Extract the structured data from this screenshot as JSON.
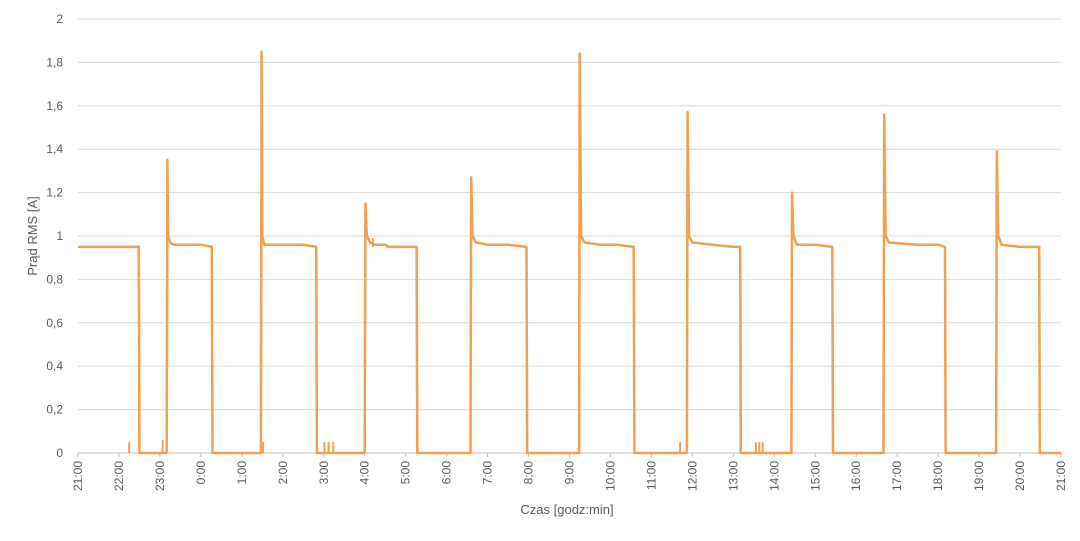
{
  "chart_data": {
    "type": "line",
    "title": "",
    "xlabel": "Czas [godz:min]",
    "ylabel": "Prąd RMS [A]",
    "ylim": [
      0,
      2
    ],
    "yticks": [
      {
        "value": 0,
        "label": "0"
      },
      {
        "value": 0.2,
        "label": "0,2"
      },
      {
        "value": 0.4,
        "label": "0,4"
      },
      {
        "value": 0.6,
        "label": "0,6"
      },
      {
        "value": 0.8,
        "label": "0,8"
      },
      {
        "value": 1.0,
        "label": "1"
      },
      {
        "value": 1.2,
        "label": "1,2"
      },
      {
        "value": 1.4,
        "label": "1,4"
      },
      {
        "value": 1.6,
        "label": "1,6"
      },
      {
        "value": 1.8,
        "label": "1,8"
      },
      {
        "value": 2.0,
        "label": "2"
      }
    ],
    "xticks": [
      "21:00",
      "22:00",
      "23:00",
      "0:00",
      "1:00",
      "2:00",
      "3:00",
      "4:00",
      "5:00",
      "6:00",
      "7:00",
      "8:00",
      "9:00",
      "10:00",
      "11:00",
      "12:00",
      "13:00",
      "14:00",
      "15:00",
      "16:00",
      "17:00",
      "18:00",
      "19:00",
      "20:00",
      "21:00"
    ],
    "xlim": [
      "21:00",
      "21:00 (+24h)"
    ],
    "grid": {
      "horizontal": true,
      "vertical": false
    },
    "legend": "none",
    "series_color": "#F0A050",
    "series": [
      {
        "x": [
          "21:00",
          "22:29",
          "22:30",
          "23:10",
          "23:11",
          "23:12",
          "23:15",
          "23:20",
          "23:30",
          "23:45",
          "0:00",
          "0:16",
          "0:17",
          "1:28",
          "1:29",
          "1:30",
          "1:33",
          "1:37",
          "1:50",
          "2:30",
          "2:49",
          "2:50",
          "4:00",
          "4:01",
          "4:03",
          "4:08",
          "4:15",
          "4:30",
          "4:35",
          "5:00",
          "5:16",
          "5:17",
          "6:35",
          "6:36",
          "6:38",
          "6:43",
          "7:00",
          "7:30",
          "7:57",
          "7:58",
          "9:14",
          "9:15",
          "9:17",
          "9:22",
          "9:45",
          "10:10",
          "10:34",
          "10:35",
          "11:52",
          "11:53",
          "11:55",
          "12:00",
          "12:30",
          "13:00",
          "13:10",
          "13:11",
          "14:25",
          "14:26",
          "14:28",
          "14:33",
          "15:00",
          "15:25",
          "15:26",
          "16:40",
          "16:41",
          "16:43",
          "16:48",
          "17:30",
          "18:00",
          "18:10",
          "18:11",
          "19:25",
          "19:26",
          "19:28",
          "19:33",
          "20:00",
          "20:28",
          "20:29",
          "21:00"
        ],
        "y": [
          0.95,
          0.95,
          0,
          0,
          1.35,
          1.0,
          0.97,
          0.96,
          0.96,
          0.96,
          0.96,
          0.95,
          0,
          0,
          1.85,
          1.0,
          0.96,
          0.96,
          0.96,
          0.96,
          0.95,
          0,
          0,
          1.15,
          1.0,
          0.97,
          0.96,
          0.96,
          0.95,
          0.95,
          0.95,
          0,
          0,
          1.27,
          1.0,
          0.97,
          0.96,
          0.96,
          0.95,
          0,
          0,
          1.84,
          1.0,
          0.97,
          0.96,
          0.96,
          0.95,
          0,
          0,
          1.57,
          1.0,
          0.97,
          0.96,
          0.95,
          0.95,
          0,
          0,
          1.2,
          1.0,
          0.96,
          0.96,
          0.95,
          0,
          0,
          1.56,
          1.0,
          0.97,
          0.96,
          0.96,
          0.95,
          0,
          0,
          1.39,
          1.0,
          0.96,
          0.95,
          0.95,
          0,
          0
        ]
      }
    ],
    "small_spikes": [
      {
        "x": "22:15",
        "y": 0.05
      },
      {
        "x": "23:04",
        "y": 0.06
      },
      {
        "x": "1:31",
        "y": 0.05
      },
      {
        "x": "3:01",
        "y": 0.05
      },
      {
        "x": "3:07",
        "y": 0.05
      },
      {
        "x": "3:14",
        "y": 0.05
      },
      {
        "x": "4:12",
        "y": 0.99
      },
      {
        "x": "11:42",
        "y": 0.05
      },
      {
        "x": "13:33",
        "y": 0.05
      },
      {
        "x": "13:38",
        "y": 0.05
      },
      {
        "x": "13:43",
        "y": 0.05
      }
    ]
  }
}
